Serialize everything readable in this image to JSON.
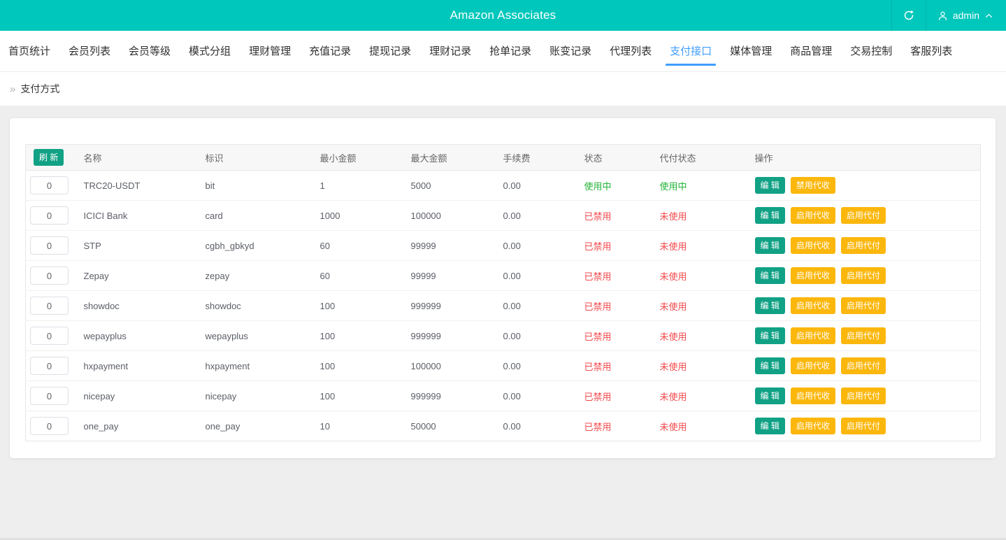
{
  "header": {
    "title": "Amazon Associates",
    "user": "admin"
  },
  "icons": {
    "refresh": "refresh-icon",
    "user": "user-icon",
    "collapse": "chevron-up-icon",
    "breadcrumb_glyph": "»"
  },
  "nav": {
    "items": [
      {
        "label": "首页统计",
        "active": false
      },
      {
        "label": "会员列表",
        "active": false
      },
      {
        "label": "会员等级",
        "active": false
      },
      {
        "label": "模式分组",
        "active": false
      },
      {
        "label": "理财管理",
        "active": false
      },
      {
        "label": "充值记录",
        "active": false
      },
      {
        "label": "提现记录",
        "active": false
      },
      {
        "label": "理财记录",
        "active": false
      },
      {
        "label": "抢单记录",
        "active": false
      },
      {
        "label": "账变记录",
        "active": false
      },
      {
        "label": "代理列表",
        "active": false
      },
      {
        "label": "支付接口",
        "active": true
      },
      {
        "label": "媒体管理",
        "active": false
      },
      {
        "label": "商品管理",
        "active": false
      },
      {
        "label": "交易控制",
        "active": false
      },
      {
        "label": "客服列表",
        "active": false
      }
    ]
  },
  "breadcrumb": {
    "label": "支付方式"
  },
  "table": {
    "refresh_label": "刷 新",
    "columns": [
      "名称",
      "标识",
      "最小金额",
      "最大金额",
      "手续费",
      "状态",
      "代付状态",
      "操作"
    ],
    "rows": [
      {
        "sort": "0",
        "name": "TRC20-USDT",
        "code": "bit",
        "min": "1",
        "max": "5000",
        "fee": "0.00",
        "status": "使用中",
        "status_color": "green",
        "pay_status": "使用中",
        "pay_status_color": "green",
        "actions": [
          {
            "label": "编 辑",
            "type": "teal",
            "name": "edit-button"
          },
          {
            "label": "禁用代收",
            "type": "yellow",
            "name": "disable-collect-button"
          }
        ]
      },
      {
        "sort": "0",
        "name": "ICICI Bank",
        "code": "card",
        "min": "1000",
        "max": "100000",
        "fee": "0.00",
        "status": "已禁用",
        "status_color": "red",
        "pay_status": "未使用",
        "pay_status_color": "red",
        "actions": [
          {
            "label": "编 辑",
            "type": "teal",
            "name": "edit-button"
          },
          {
            "label": "启用代收",
            "type": "yellow",
            "name": "enable-collect-button"
          },
          {
            "label": "启用代付",
            "type": "yellow",
            "name": "enable-payout-button"
          }
        ]
      },
      {
        "sort": "0",
        "name": "STP",
        "code": "cgbh_gbkyd",
        "min": "60",
        "max": "99999",
        "fee": "0.00",
        "status": "已禁用",
        "status_color": "red",
        "pay_status": "未使用",
        "pay_status_color": "red",
        "actions": [
          {
            "label": "编 辑",
            "type": "teal",
            "name": "edit-button"
          },
          {
            "label": "启用代收",
            "type": "yellow",
            "name": "enable-collect-button"
          },
          {
            "label": "启用代付",
            "type": "yellow",
            "name": "enable-payout-button"
          }
        ]
      },
      {
        "sort": "0",
        "name": "Zepay",
        "code": "zepay",
        "min": "60",
        "max": "99999",
        "fee": "0.00",
        "status": "已禁用",
        "status_color": "red",
        "pay_status": "未使用",
        "pay_status_color": "red",
        "actions": [
          {
            "label": "编 辑",
            "type": "teal",
            "name": "edit-button"
          },
          {
            "label": "启用代收",
            "type": "yellow",
            "name": "enable-collect-button"
          },
          {
            "label": "启用代付",
            "type": "yellow",
            "name": "enable-payout-button"
          }
        ]
      },
      {
        "sort": "0",
        "name": "showdoc",
        "code": "showdoc",
        "min": "100",
        "max": "999999",
        "fee": "0.00",
        "status": "已禁用",
        "status_color": "red",
        "pay_status": "未使用",
        "pay_status_color": "red",
        "actions": [
          {
            "label": "编 辑",
            "type": "teal",
            "name": "edit-button"
          },
          {
            "label": "启用代收",
            "type": "yellow",
            "name": "enable-collect-button"
          },
          {
            "label": "启用代付",
            "type": "yellow",
            "name": "enable-payout-button"
          }
        ]
      },
      {
        "sort": "0",
        "name": "wepayplus",
        "code": "wepayplus",
        "min": "100",
        "max": "999999",
        "fee": "0.00",
        "status": "已禁用",
        "status_color": "red",
        "pay_status": "未使用",
        "pay_status_color": "red",
        "actions": [
          {
            "label": "编 辑",
            "type": "teal",
            "name": "edit-button"
          },
          {
            "label": "启用代收",
            "type": "yellow",
            "name": "enable-collect-button"
          },
          {
            "label": "启用代付",
            "type": "yellow",
            "name": "enable-payout-button"
          }
        ]
      },
      {
        "sort": "0",
        "name": "hxpayment",
        "code": "hxpayment",
        "min": "100",
        "max": "100000",
        "fee": "0.00",
        "status": "已禁用",
        "status_color": "red",
        "pay_status": "未使用",
        "pay_status_color": "red",
        "actions": [
          {
            "label": "编 辑",
            "type": "teal",
            "name": "edit-button"
          },
          {
            "label": "启用代收",
            "type": "yellow",
            "name": "enable-collect-button"
          },
          {
            "label": "启用代付",
            "type": "yellow",
            "name": "enable-payout-button"
          }
        ]
      },
      {
        "sort": "0",
        "name": "nicepay",
        "code": "nicepay",
        "min": "100",
        "max": "999999",
        "fee": "0.00",
        "status": "已禁用",
        "status_color": "red",
        "pay_status": "未使用",
        "pay_status_color": "red",
        "actions": [
          {
            "label": "编 辑",
            "type": "teal",
            "name": "edit-button"
          },
          {
            "label": "启用代收",
            "type": "yellow",
            "name": "enable-collect-button"
          },
          {
            "label": "启用代付",
            "type": "yellow",
            "name": "enable-payout-button"
          }
        ]
      },
      {
        "sort": "0",
        "name": "one_pay",
        "code": "one_pay",
        "min": "10",
        "max": "50000",
        "fee": "0.00",
        "status": "已禁用",
        "status_color": "red",
        "pay_status": "未使用",
        "pay_status_color": "red",
        "actions": [
          {
            "label": "编 辑",
            "type": "teal",
            "name": "edit-button"
          },
          {
            "label": "启用代收",
            "type": "yellow",
            "name": "enable-collect-button"
          },
          {
            "label": "启用代付",
            "type": "yellow",
            "name": "enable-payout-button"
          }
        ]
      }
    ]
  },
  "colors": {
    "header_bg": "#00c7bb",
    "active_tab": "#409eff",
    "teal_button": "#11a185",
    "yellow_button": "#fbb70c",
    "status_green": "#23b338",
    "status_red": "#f2494c"
  }
}
